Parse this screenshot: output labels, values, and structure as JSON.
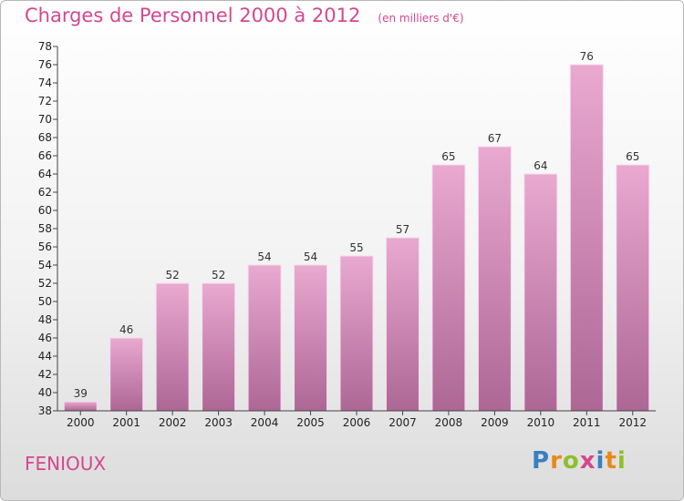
{
  "header": {
    "title": "Charges de Personnel 2000 à 2012",
    "subtitle": "(en milliers d'€)"
  },
  "footer": {
    "commune": "FENIOUX",
    "logo_text": "Proxiti",
    "logo_colors": [
      "#3a7fc1",
      "#e8891a",
      "#8fbf2c",
      "#d4478f",
      "#3a7fc1",
      "#e8891a",
      "#8fbf2c"
    ]
  },
  "colors": {
    "bar_top": "#e9a9d0",
    "bar_bottom": "#ad6795",
    "accent": "#d4478f"
  },
  "chart_data": {
    "type": "bar",
    "title": "Charges de Personnel 2000 à 2012",
    "subtitle": "(en milliers d'€)",
    "categories": [
      "2000",
      "2001",
      "2002",
      "2003",
      "2004",
      "2005",
      "2006",
      "2007",
      "2008",
      "2009",
      "2010",
      "2011",
      "2012"
    ],
    "values": [
      39,
      46,
      52,
      52,
      54,
      54,
      55,
      57,
      65,
      67,
      64,
      76,
      65
    ],
    "ylim": [
      38,
      78
    ],
    "yticks": [
      38,
      40,
      42,
      44,
      46,
      48,
      50,
      52,
      54,
      56,
      58,
      60,
      62,
      64,
      66,
      68,
      70,
      72,
      74,
      76,
      78
    ],
    "grid": false
  }
}
